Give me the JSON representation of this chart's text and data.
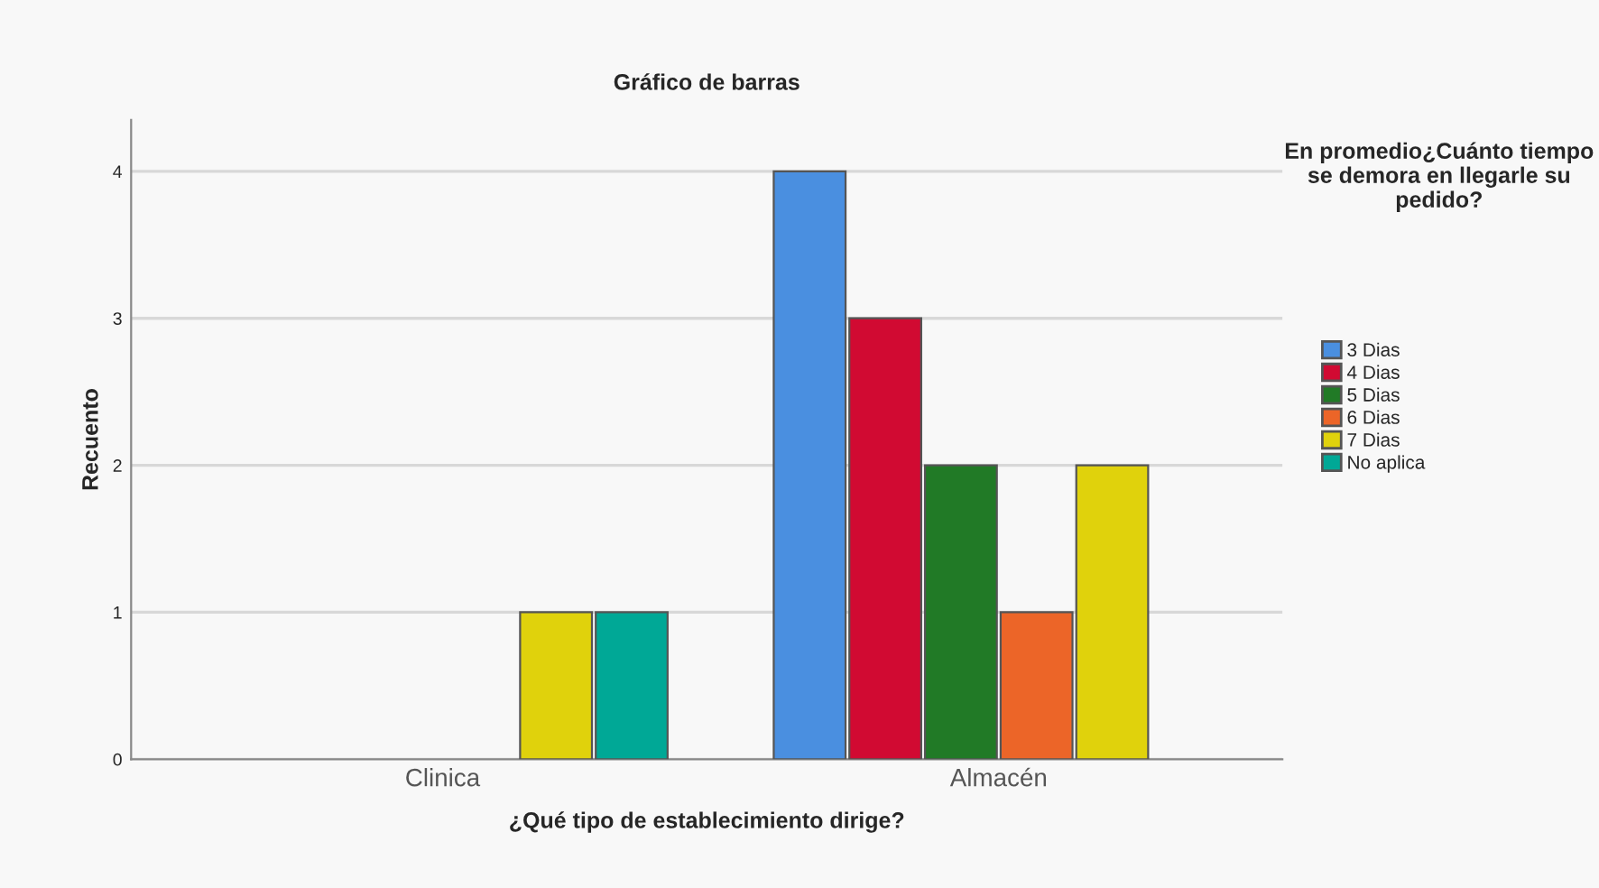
{
  "chart_data": {
    "type": "bar",
    "title": "Gráfico de barras",
    "xlabel": "¿Qué tipo de establecimiento dirige?",
    "ylabel": "Recuento",
    "legend_title": "En promedio¿Cuánto tiempo se demora en llegarle su pedido?",
    "categories": [
      "Clinica",
      "Almacén"
    ],
    "series": [
      {
        "name": "3 Dias",
        "color": "#4a8fe0",
        "values": [
          null,
          4
        ]
      },
      {
        "name": "4 Dias",
        "color": "#d10a32",
        "values": [
          null,
          3
        ]
      },
      {
        "name": "5 Dias",
        "color": "#217a26",
        "values": [
          null,
          2
        ]
      },
      {
        "name": "6 Dias",
        "color": "#ec6528",
        "values": [
          null,
          1
        ]
      },
      {
        "name": "7 Dias",
        "color": "#e0d20c",
        "values": [
          1,
          2
        ]
      },
      {
        "name": "No aplica",
        "color": "#00a896",
        "values": [
          1,
          null
        ]
      }
    ],
    "ylim": [
      0,
      4.35
    ],
    "yticks": [
      0,
      1,
      2,
      3,
      4
    ],
    "grid": "y",
    "legend": "right"
  }
}
